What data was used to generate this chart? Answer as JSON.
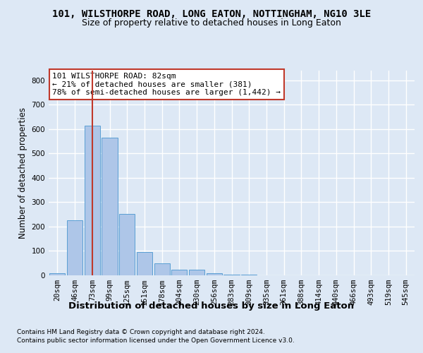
{
  "title_line1": "101, WILSTHORPE ROAD, LONG EATON, NOTTINGHAM, NG10 3LE",
  "title_line2": "Size of property relative to detached houses in Long Eaton",
  "xlabel": "Distribution of detached houses by size in Long Eaton",
  "ylabel": "Number of detached properties",
  "categories": [
    "20sqm",
    "46sqm",
    "73sqm",
    "99sqm",
    "125sqm",
    "151sqm",
    "178sqm",
    "204sqm",
    "230sqm",
    "256sqm",
    "283sqm",
    "309sqm",
    "335sqm",
    "361sqm",
    "388sqm",
    "414sqm",
    "440sqm",
    "466sqm",
    "493sqm",
    "519sqm",
    "545sqm"
  ],
  "values": [
    10,
    225,
    615,
    565,
    252,
    95,
    48,
    23,
    23,
    8,
    2,
    2,
    1,
    0,
    0,
    0,
    0,
    0,
    0,
    0,
    0
  ],
  "bar_color": "#aec6e8",
  "bar_edge_color": "#5a9fd4",
  "vline_x": 2,
  "vline_color": "#c0392b",
  "ylim": [
    0,
    840
  ],
  "yticks": [
    0,
    100,
    200,
    300,
    400,
    500,
    600,
    700,
    800
  ],
  "annotation_text": "101 WILSTHORPE ROAD: 82sqm\n← 21% of detached houses are smaller (381)\n78% of semi-detached houses are larger (1,442) →",
  "annotation_box_color": "#ffffff",
  "annotation_box_edge": "#c0392b",
  "footnote1": "Contains HM Land Registry data © Crown copyright and database right 2024.",
  "footnote2": "Contains public sector information licensed under the Open Government Licence v3.0.",
  "background_color": "#dde8f5",
  "plot_bg_color": "#dde8f5",
  "grid_color": "#ffffff",
  "title_fontsize": 10,
  "subtitle_fontsize": 9,
  "tick_fontsize": 7.5,
  "ylabel_fontsize": 8.5,
  "xlabel_fontsize": 9.5,
  "footnote_fontsize": 6.5
}
